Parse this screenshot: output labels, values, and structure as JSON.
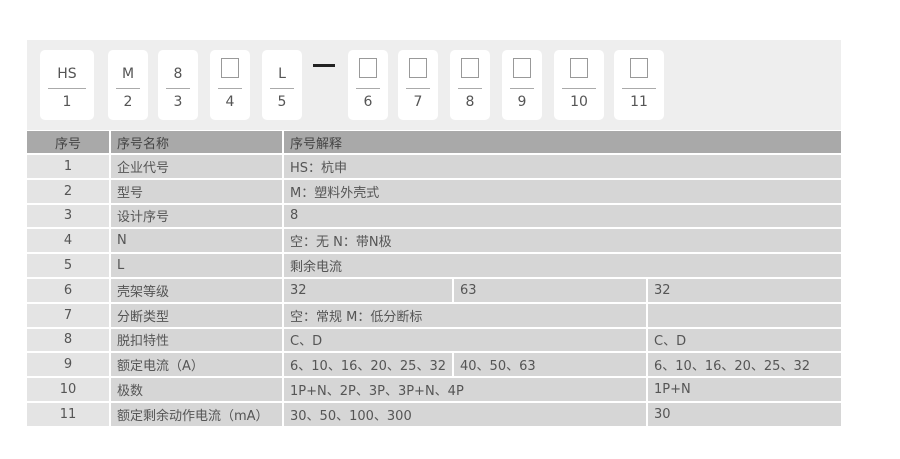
{
  "code_boxes": [
    {
      "top": "HS",
      "num": "1"
    },
    {
      "top": "M",
      "num": "2"
    },
    {
      "top": "8",
      "num": "3"
    },
    {
      "top": "",
      "num": "4",
      "empty": true
    },
    {
      "top": "L",
      "num": "5"
    },
    {
      "top": "",
      "num": "6",
      "empty": true
    },
    {
      "top": "",
      "num": "7",
      "empty": true
    },
    {
      "top": "",
      "num": "8",
      "empty": true
    },
    {
      "top": "",
      "num": "9",
      "empty": true
    },
    {
      "top": "",
      "num": "10",
      "empty": true
    },
    {
      "top": "",
      "num": "11",
      "empty": true
    }
  ],
  "table": {
    "headers": [
      "序号",
      "序号名称",
      "序号解释"
    ],
    "rows": [
      {
        "no": "1",
        "name": "企业代号",
        "cells": [
          "HS：杭申"
        ]
      },
      {
        "no": "2",
        "name": "型号",
        "cells": [
          "M：塑料外壳式"
        ]
      },
      {
        "no": "3",
        "name": "设计序号",
        "cells": [
          "8"
        ]
      },
      {
        "no": "4",
        "name": "N",
        "cells": [
          "空：无   N：带N极"
        ]
      },
      {
        "no": "5",
        "name": "L",
        "cells": [
          "剩余电流"
        ]
      },
      {
        "no": "6",
        "name": "壳架等级",
        "cells": [
          "32",
          "63",
          "32"
        ]
      },
      {
        "no": "7",
        "name": "分断类型",
        "cells": [
          "空：常规  M：低分断标",
          ""
        ]
      },
      {
        "no": "8",
        "name": "脱扣特性",
        "cells": [
          "C、D",
          "C、D"
        ]
      },
      {
        "no": "9",
        "name": "额定电流（A）",
        "cells": [
          "6、10、16、20、25、32",
          "40、50、63",
          "6、10、16、20、25、32"
        ]
      },
      {
        "no": "10",
        "name": "极数",
        "cells": [
          "1P+N、2P、3P、3P+N、4P",
          "1P+N"
        ]
      },
      {
        "no": "11",
        "name": "额定剩余动作电流（mA）",
        "cells": [
          "30、50、100、300",
          "30"
        ]
      }
    ]
  }
}
